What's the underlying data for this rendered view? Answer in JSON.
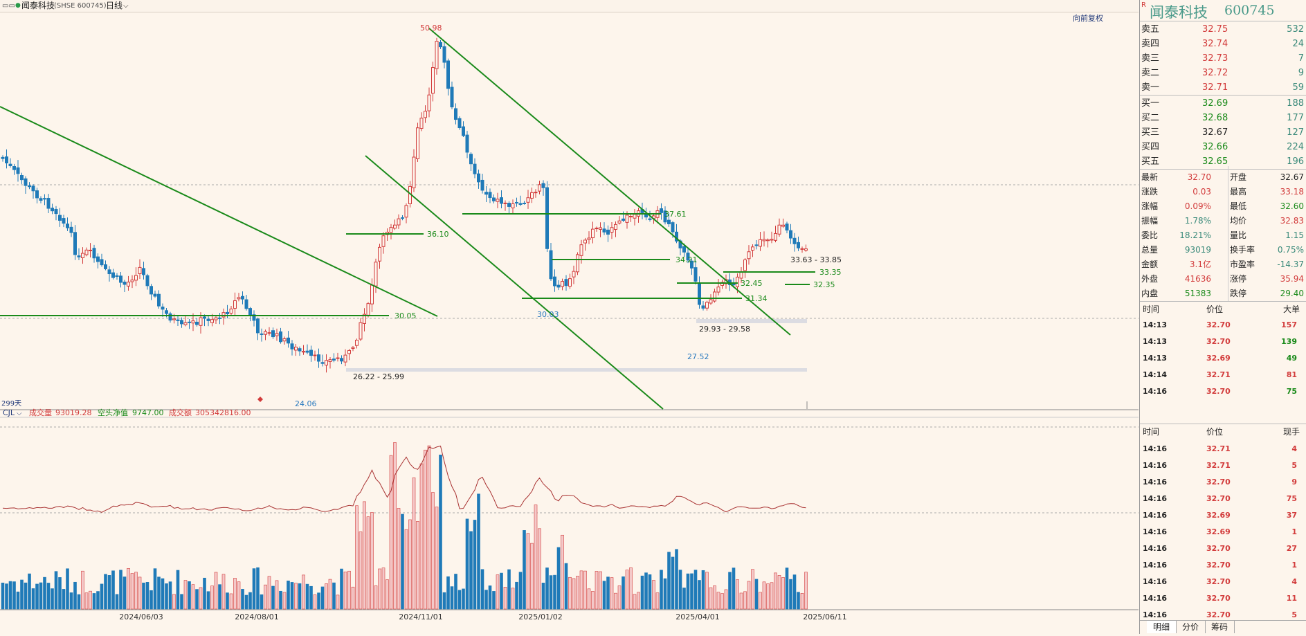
{
  "header": {
    "menu_glyph": "▭▭",
    "stock_title": "闻泰科技",
    "stock_code_label": "(SHSE 600745)",
    "period": "日线",
    "adjust_label": "向前复权",
    "days_label": "299天"
  },
  "dates": [
    "2024/06/03",
    "2024/08/01",
    "2024/11/01",
    "2025/01/02",
    "2025/04/01",
    "2025/06/11"
  ],
  "price_labels": {
    "high": "50.98",
    "resist_a": "37.61",
    "resist_b": "36.10",
    "level_c": "34.21",
    "range_a": "33.63 - 33.85",
    "level_d": "33.35",
    "level_e": "32.45",
    "level_f": "32.35",
    "level_g": "31.34",
    "level_h": "30.05",
    "low_a": "30.03",
    "range_b": "29.93 - 29.58",
    "low_b": "27.52",
    "range_c": "26.22 - 25.99",
    "low_c": "24.06"
  },
  "volume_indicator": {
    "name": "CJL",
    "vol_label": "成交量",
    "vol_value": "93019.28",
    "net_label": "空头净值",
    "net_value": "9747.00",
    "amt_label": "成交额",
    "amt_value": "305342816.00"
  },
  "quote_panel": {
    "name": "闻泰科技",
    "code": "600745",
    "r_mark": "R",
    "asks": [
      {
        "label": "卖五",
        "price": "32.75",
        "vol": "532"
      },
      {
        "label": "卖四",
        "price": "32.74",
        "vol": "24"
      },
      {
        "label": "卖三",
        "price": "32.73",
        "vol": "7"
      },
      {
        "label": "卖二",
        "price": "32.72",
        "vol": "9"
      },
      {
        "label": "卖一",
        "price": "32.71",
        "vol": "59"
      }
    ],
    "bids": [
      {
        "label": "买一",
        "price": "32.69",
        "vol": "188",
        "color": "dn"
      },
      {
        "label": "买二",
        "price": "32.68",
        "vol": "177",
        "color": "dn"
      },
      {
        "label": "买三",
        "price": "32.67",
        "vol": "127",
        "color": "bk"
      },
      {
        "label": "买四",
        "price": "32.66",
        "vol": "224",
        "color": "dn"
      },
      {
        "label": "买五",
        "price": "32.65",
        "vol": "196",
        "color": "dn"
      }
    ],
    "stats": [
      {
        "l1": "最新",
        "v1": "32.70",
        "c1": "up",
        "l2": "开盘",
        "v2": "32.67",
        "c2": "bk"
      },
      {
        "l1": "涨跌",
        "v1": "0.03",
        "c1": "up",
        "l2": "最高",
        "v2": "33.18",
        "c2": "up"
      },
      {
        "l1": "涨幅",
        "v1": "0.09%",
        "c1": "up",
        "l2": "最低",
        "v2": "32.60",
        "c2": "dn"
      },
      {
        "l1": "振幅",
        "v1": "1.78%",
        "c1": "teal",
        "l2": "均价",
        "v2": "32.83",
        "c2": "up"
      },
      {
        "l1": "委比",
        "v1": "18.21%",
        "c1": "teal",
        "l2": "量比",
        "v2": "1.15",
        "c2": "teal"
      },
      {
        "l1": "总量",
        "v1": "93019",
        "c1": "teal",
        "l2": "换手率",
        "v2": "0.75%",
        "c2": "teal"
      },
      {
        "l1": "金额",
        "v1": "3.1亿",
        "c1": "up",
        "l2": "市盈率",
        "v2": "-14.37",
        "c2": "teal"
      },
      {
        "l1": "外盘",
        "v1": "41636",
        "c1": "up",
        "l2": "涨停",
        "v2": "35.94",
        "c2": "up"
      },
      {
        "l1": "内盘",
        "v1": "51383",
        "c1": "dn",
        "l2": "跌停",
        "v2": "29.40",
        "c2": "dn"
      }
    ],
    "big_header": [
      "时间",
      "价位",
      "大单"
    ],
    "big_orders": [
      {
        "t": "14:13",
        "p": "32.70",
        "v": "157",
        "vc": "up"
      },
      {
        "t": "14:13",
        "p": "32.70",
        "v": "139",
        "vc": "dn"
      },
      {
        "t": "14:13",
        "p": "32.69",
        "v": "49",
        "vc": "dn"
      },
      {
        "t": "14:14",
        "p": "32.71",
        "v": "81",
        "vc": "up"
      },
      {
        "t": "14:16",
        "p": "32.70",
        "v": "75",
        "vc": "dn"
      }
    ],
    "tick_header": [
      "时间",
      "价位",
      "现手"
    ],
    "ticks": [
      {
        "t": "14:16",
        "p": "32.71",
        "v": "4"
      },
      {
        "t": "14:16",
        "p": "32.71",
        "v": "5"
      },
      {
        "t": "14:16",
        "p": "32.70",
        "v": "9"
      },
      {
        "t": "14:16",
        "p": "32.70",
        "v": "75"
      },
      {
        "t": "14:16",
        "p": "32.69",
        "v": "37"
      },
      {
        "t": "14:16",
        "p": "32.69",
        "v": "1"
      },
      {
        "t": "14:16",
        "p": "32.70",
        "v": "27"
      },
      {
        "t": "14:16",
        "p": "32.70",
        "v": "1"
      },
      {
        "t": "14:16",
        "p": "32.70",
        "v": "4"
      },
      {
        "t": "14:16",
        "p": "32.70",
        "v": "11"
      },
      {
        "t": "14:16",
        "p": "32.70",
        "v": "5"
      }
    ],
    "tabs": [
      "明细",
      "分价",
      "筹码"
    ]
  }
}
